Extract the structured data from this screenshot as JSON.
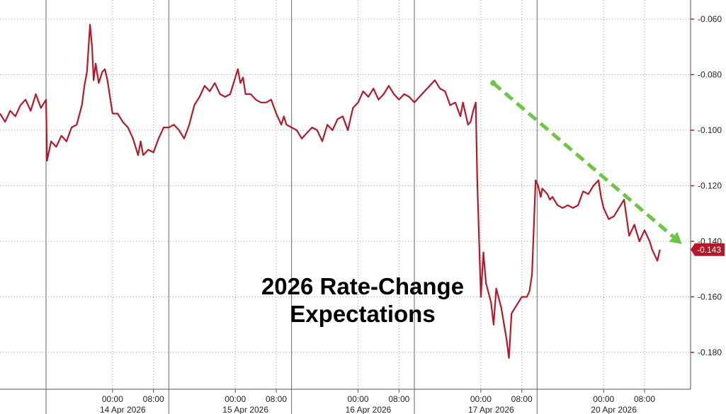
{
  "chart_data": {
    "type": "line",
    "title": "",
    "xlabel": "",
    "ylabel": "",
    "ylim": [
      -0.19,
      -0.055
    ],
    "y_ticks": [
      "-0.060",
      "-0.080",
      "-0.100",
      "-0.120",
      "-0.140",
      "-0.160",
      "-0.180"
    ],
    "y_tick_values": [
      -0.06,
      -0.08,
      -0.1,
      -0.12,
      -0.14,
      -0.16,
      -0.18
    ],
    "y_axis_side": "right",
    "x_hour_ticks": [
      {
        "label": "00:00",
        "t": 22
      },
      {
        "label": "08:00",
        "t": 30
      },
      {
        "label": "00:00",
        "t": 46
      },
      {
        "label": "08:00",
        "t": 54
      },
      {
        "label": "00:00",
        "t": 70
      },
      {
        "label": "08:00",
        "t": 78
      },
      {
        "label": "00:00",
        "t": 94
      },
      {
        "label": "08:00",
        "t": 102
      },
      {
        "label": "00:00",
        "t": 118
      },
      {
        "label": "08:00",
        "t": 126
      }
    ],
    "x_date_labels": [
      {
        "label": "14 Apr 2026",
        "t": 24
      },
      {
        "label": "15 Apr 2026",
        "t": 48
      },
      {
        "label": "16 Apr 2026",
        "t": 72
      },
      {
        "label": "17 Apr 2026",
        "t": 96
      },
      {
        "label": "20 Apr 2026",
        "t": 120
      }
    ],
    "x_day_separators": [
      9,
      33,
      57,
      81,
      105
    ],
    "grid": true,
    "last_value_label": "-0.143",
    "annotation": [
      "2026 Rate-Change",
      "Expectations"
    ],
    "trend_arrow": {
      "from": [
        96.4,
        -0.083
      ],
      "to": [
        133.3,
        -0.141
      ],
      "color": "#6cc644"
    },
    "series": [
      {
        "color": "#b5182b",
        "points": [
          [
            0,
            -0.094
          ],
          [
            1,
            -0.097
          ],
          [
            2,
            -0.093
          ],
          [
            3,
            -0.095
          ],
          [
            4,
            -0.091
          ],
          [
            5,
            -0.089
          ],
          [
            6,
            -0.093
          ],
          [
            7,
            -0.087
          ],
          [
            8,
            -0.092
          ],
          [
            9,
            -0.089
          ],
          [
            9.2,
            -0.111
          ],
          [
            10,
            -0.104
          ],
          [
            11,
            -0.106
          ],
          [
            12,
            -0.102
          ],
          [
            13,
            -0.104
          ],
          [
            14,
            -0.099
          ],
          [
            15,
            -0.098
          ],
          [
            16,
            -0.091
          ],
          [
            16.5,
            -0.084
          ],
          [
            17,
            -0.079
          ],
          [
            17.6,
            -0.062
          ],
          [
            18,
            -0.07
          ],
          [
            18.3,
            -0.082
          ],
          [
            18.7,
            -0.076
          ],
          [
            19.3,
            -0.083
          ],
          [
            20,
            -0.079
          ],
          [
            20.5,
            -0.078
          ],
          [
            21,
            -0.082
          ],
          [
            21.5,
            -0.088
          ],
          [
            22,
            -0.094
          ],
          [
            23,
            -0.094
          ],
          [
            24,
            -0.097
          ],
          [
            25,
            -0.099
          ],
          [
            26,
            -0.103
          ],
          [
            27,
            -0.109
          ],
          [
            27.5,
            -0.104
          ],
          [
            28,
            -0.109
          ],
          [
            29,
            -0.107
          ],
          [
            30,
            -0.108
          ],
          [
            31,
            -0.103
          ],
          [
            32,
            -0.099
          ],
          [
            33,
            -0.099
          ],
          [
            34,
            -0.098
          ],
          [
            35,
            -0.1
          ],
          [
            36,
            -0.103
          ],
          [
            37,
            -0.098
          ],
          [
            38,
            -0.091
          ],
          [
            39,
            -0.088
          ],
          [
            40,
            -0.084
          ],
          [
            41,
            -0.086
          ],
          [
            42,
            -0.083
          ],
          [
            43,
            -0.087
          ],
          [
            44,
            -0.088
          ],
          [
            45,
            -0.087
          ],
          [
            46,
            -0.081
          ],
          [
            46.5,
            -0.078
          ],
          [
            47,
            -0.083
          ],
          [
            47.5,
            -0.081
          ],
          [
            48,
            -0.087
          ],
          [
            49,
            -0.087
          ],
          [
            50,
            -0.089
          ],
          [
            51,
            -0.09
          ],
          [
            52,
            -0.09
          ],
          [
            53,
            -0.089
          ],
          [
            54,
            -0.094
          ],
          [
            55,
            -0.098
          ],
          [
            55.5,
            -0.095
          ],
          [
            56,
            -0.098
          ],
          [
            57,
            -0.099
          ],
          [
            58,
            -0.1
          ],
          [
            59,
            -0.103
          ],
          [
            60,
            -0.101
          ],
          [
            61,
            -0.099
          ],
          [
            62,
            -0.1
          ],
          [
            63,
            -0.104
          ],
          [
            64,
            -0.098
          ],
          [
            65,
            -0.1
          ],
          [
            66,
            -0.096
          ],
          [
            67,
            -0.095
          ],
          [
            68,
            -0.1
          ],
          [
            69,
            -0.092
          ],
          [
            70,
            -0.09
          ],
          [
            71,
            -0.086
          ],
          [
            72,
            -0.088
          ],
          [
            73,
            -0.085
          ],
          [
            74,
            -0.089
          ],
          [
            75,
            -0.087
          ],
          [
            76,
            -0.084
          ],
          [
            77,
            -0.087
          ],
          [
            78,
            -0.089
          ],
          [
            79,
            -0.087
          ],
          [
            80,
            -0.088
          ],
          [
            81,
            -0.09
          ],
          [
            82,
            -0.088
          ],
          [
            83,
            -0.086
          ],
          [
            84,
            -0.084
          ],
          [
            85,
            -0.082
          ],
          [
            86,
            -0.085
          ],
          [
            87,
            -0.086
          ],
          [
            88,
            -0.091
          ],
          [
            89,
            -0.09
          ],
          [
            90,
            -0.095
          ],
          [
            90.5,
            -0.09
          ],
          [
            91,
            -0.094
          ],
          [
            91.5,
            -0.098
          ],
          [
            92,
            -0.097
          ],
          [
            92.5,
            -0.093
          ],
          [
            93,
            -0.09
          ],
          [
            93.3,
            -0.118
          ],
          [
            94,
            -0.16
          ],
          [
            94.5,
            -0.144
          ],
          [
            95,
            -0.155
          ],
          [
            96,
            -0.162
          ],
          [
            96.5,
            -0.17
          ],
          [
            97,
            -0.157
          ],
          [
            98,
            -0.164
          ],
          [
            99,
            -0.175
          ],
          [
            99.5,
            -0.182
          ],
          [
            100,
            -0.166
          ],
          [
            101,
            -0.163
          ],
          [
            102,
            -0.16
          ],
          [
            103,
            -0.16
          ],
          [
            103.5,
            -0.158
          ],
          [
            104,
            -0.152
          ],
          [
            104.7,
            -0.118
          ],
          [
            105.2,
            -0.12
          ],
          [
            105.7,
            -0.124
          ],
          [
            106,
            -0.121
          ],
          [
            107,
            -0.123
          ],
          [
            107.5,
            -0.125
          ],
          [
            108,
            -0.124
          ],
          [
            109,
            -0.127
          ],
          [
            110,
            -0.128
          ],
          [
            111,
            -0.127
          ],
          [
            112,
            -0.128
          ],
          [
            113,
            -0.127
          ],
          [
            114,
            -0.122
          ],
          [
            115,
            -0.123
          ],
          [
            116,
            -0.12
          ],
          [
            117,
            -0.118
          ],
          [
            117.5,
            -0.124
          ],
          [
            118,
            -0.128
          ],
          [
            118.5,
            -0.13
          ],
          [
            119,
            -0.132
          ],
          [
            120,
            -0.131
          ],
          [
            121,
            -0.128
          ],
          [
            122,
            -0.125
          ],
          [
            123,
            -0.138
          ],
          [
            124,
            -0.134
          ],
          [
            125,
            -0.14
          ],
          [
            126,
            -0.136
          ],
          [
            127,
            -0.14
          ],
          [
            127.5,
            -0.143
          ],
          [
            128,
            -0.145
          ],
          [
            128.5,
            -0.147
          ],
          [
            129,
            -0.143
          ]
        ]
      }
    ]
  }
}
